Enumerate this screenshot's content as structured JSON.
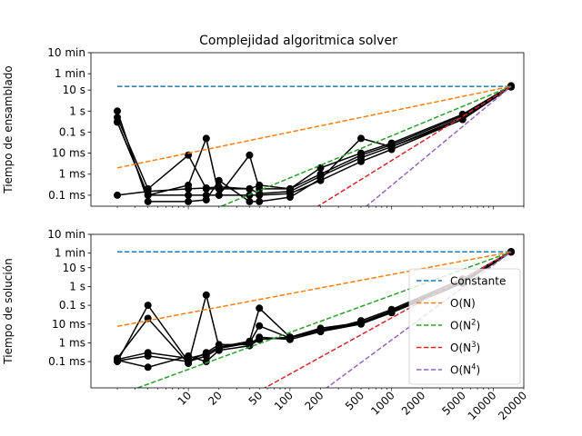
{
  "chart_data": [
    {
      "type": "line",
      "title": "Complejidad algoritmica solver",
      "xlabel": "",
      "ylabel": "Tiempo de ensamblado",
      "xscale": "log",
      "yscale": "log",
      "xlim": [
        1.1,
        20000
      ],
      "ylim": [
        3e-05,
        600
      ],
      "yticks": [
        {
          "value": 0.0001,
          "label": "0.1 ms"
        },
        {
          "value": 0.001,
          "label": "1 ms"
        },
        {
          "value": 0.01,
          "label": "10 ms"
        },
        {
          "value": 0.1,
          "label": "0.1 s"
        },
        {
          "value": 1,
          "label": "1 s"
        },
        {
          "value": 10,
          "label": "10 s"
        },
        {
          "value": 60,
          "label": "1 min"
        },
        {
          "value": 600,
          "label": "10 min"
        }
      ],
      "xticklabels_visible": false,
      "reference_lines": [
        {
          "name": "Constante",
          "color": "#1f77b4",
          "x": [
            2,
            15000
          ],
          "y": [
            15,
            15
          ]
        },
        {
          "name": "O(N)",
          "color": "#ff7f0e",
          "x": [
            2,
            15000
          ],
          "y": [
            0.002,
            15
          ]
        },
        {
          "name": "O(N2)",
          "color": "#2ca02c",
          "x": [
            10,
            15000
          ],
          "y": [
            6.7e-06,
            15
          ]
        },
        {
          "name": "O(N3)",
          "color": "#d62728",
          "x": [
            120,
            15000
          ],
          "y": [
            7.7e-06,
            15
          ]
        },
        {
          "name": "O(N4)",
          "color": "#9467bd",
          "x": [
            380,
            15000
          ],
          "y": [
            6.1e-06,
            15
          ]
        }
      ],
      "series_color": "#000000",
      "series": [
        {
          "x": [
            2,
            4,
            10,
            15,
            20,
            40,
            50,
            100,
            200,
            500,
            1000,
            5000,
            15000
          ],
          "y": [
            0.0001,
            0.00015,
            0.0002,
            0.00022,
            0.00025,
            0.0002,
            0.00012,
            0.00015,
            0.0008,
            0.006,
            0.02,
            0.5,
            15
          ]
        },
        {
          "x": [
            2,
            4,
            10,
            15,
            20,
            40,
            50,
            100,
            200,
            500,
            1000,
            5000,
            15000
          ],
          "y": [
            0.3,
            0.0001,
            0.0001,
            0.0001,
            0.0001,
            0.0001,
            0.0001,
            0.00012,
            0.0005,
            0.004,
            0.015,
            0.4,
            15
          ]
        },
        {
          "x": [
            2,
            4,
            10,
            15,
            20,
            40,
            50,
            100,
            200,
            500,
            1000,
            5000,
            15000
          ],
          "y": [
            0.5,
            0.0002,
            0.008,
            0.0002,
            0.0002,
            0.0002,
            0.0003,
            0.0002,
            0.001,
            0.008,
            0.025,
            0.6,
            15
          ]
        },
        {
          "x": [
            2,
            4,
            10,
            15,
            20,
            40,
            50,
            100,
            200,
            500,
            1000,
            5000,
            15000
          ],
          "y": [
            0.3,
            0.0001,
            0.0003,
            0.05,
            0.0001,
            0.008,
            0.0002,
            0.0002,
            0.002,
            0.01,
            0.03,
            0.7,
            16
          ]
        },
        {
          "x": [
            2,
            4,
            10,
            15,
            20,
            40,
            50,
            100,
            200,
            500,
            1000,
            5000,
            15000
          ],
          "y": [
            1.0,
            5e-05,
            5e-05,
            6e-05,
            0.0005,
            5e-05,
            5e-05,
            8e-05,
            0.0006,
            0.05,
            0.02,
            0.4,
            14
          ]
        }
      ]
    },
    {
      "type": "line",
      "xlabel": "",
      "ylabel": "Tiempo de solución",
      "xscale": "log",
      "yscale": "log",
      "xlim": [
        1.1,
        20000
      ],
      "ylim": [
        4e-06,
        600
      ],
      "yticks": [
        {
          "value": 0.0001,
          "label": "0.1 ms"
        },
        {
          "value": 0.001,
          "label": "1 ms"
        },
        {
          "value": 0.01,
          "label": "10 ms"
        },
        {
          "value": 0.1,
          "label": "0.1 s"
        },
        {
          "value": 1,
          "label": "1 s"
        },
        {
          "value": 10,
          "label": "10 s"
        },
        {
          "value": 60,
          "label": "1 min"
        },
        {
          "value": 600,
          "label": "10 min"
        }
      ],
      "xticks": [
        {
          "value": 10,
          "label": "10"
        },
        {
          "value": 20,
          "label": "20"
        },
        {
          "value": 50,
          "label": "50"
        },
        {
          "value": 100,
          "label": "100"
        },
        {
          "value": 200,
          "label": "200"
        },
        {
          "value": 500,
          "label": "500"
        },
        {
          "value": 1000,
          "label": "1000"
        },
        {
          "value": 2000,
          "label": "2000"
        },
        {
          "value": 5000,
          "label": "5000"
        },
        {
          "value": 10000,
          "label": "10000"
        },
        {
          "value": 20000,
          "label": "20000"
        }
      ],
      "legend_position": "lower-right",
      "legend": [
        "Constante",
        "O(N)",
        "O(N",
        "O(N",
        "O(N"
      ],
      "legend_superscripts": [
        "",
        "",
        "2",
        "3",
        "4"
      ],
      "reference_lines": [
        {
          "name": "Constante",
          "color": "#1f77b4",
          "x": [
            2,
            15000
          ],
          "y": [
            70,
            70
          ]
        },
        {
          "name": "O(N)",
          "color": "#ff7f0e",
          "x": [
            2,
            15000
          ],
          "y": [
            0.0075,
            70
          ]
        },
        {
          "name": "O(N2)",
          "color": "#2ca02c",
          "x": [
            2,
            15000
          ],
          "y": [
            1.6e-06,
            70
          ]
        },
        {
          "name": "O(N3)",
          "color": "#d62728",
          "x": [
            40,
            15000
          ],
          "y": [
            1.4e-06,
            70
          ]
        },
        {
          "name": "O(N4)",
          "color": "#9467bd",
          "x": [
            170,
            15000
          ],
          "y": [
            1.2e-06,
            70
          ]
        }
      ],
      "series_color": "#000000",
      "series": [
        {
          "x": [
            2,
            4,
            10,
            15,
            20,
            40,
            50,
            100,
            200,
            500,
            1000,
            5000,
            15000
          ],
          "y": [
            0.00013,
            0.0003,
            0.00015,
            0.00025,
            0.0006,
            0.001,
            0.0015,
            0.002,
            0.005,
            0.012,
            0.05,
            2,
            70
          ]
        },
        {
          "x": [
            2,
            4,
            10,
            15,
            20,
            40,
            50,
            100,
            200,
            500,
            1000,
            5000,
            15000
          ],
          "y": [
            0.0001,
            0.1,
            0.0001,
            0.0003,
            0.0008,
            0.0008,
            0.002,
            0.0015,
            0.004,
            0.01,
            0.04,
            1.5,
            68
          ]
        },
        {
          "x": [
            2,
            4,
            10,
            15,
            20,
            40,
            50,
            100,
            200,
            500,
            1000,
            5000,
            15000
          ],
          "y": [
            0.00015,
            0.02,
            8e-05,
            0.35,
            0.0006,
            0.0012,
            0.07,
            0.002,
            0.004,
            0.015,
            0.06,
            2.5,
            72
          ]
        },
        {
          "x": [
            2,
            4,
            10,
            15,
            20,
            40,
            50,
            100,
            200,
            500,
            1000,
            5000,
            15000
          ],
          "y": [
            0.00012,
            5e-05,
            0.0002,
            0.0001,
            0.0004,
            0.0007,
            0.0015,
            0.002,
            0.006,
            0.012,
            0.05,
            2,
            70
          ]
        },
        {
          "x": [
            2,
            4,
            10,
            15,
            20,
            40,
            50,
            100,
            200,
            500,
            1000,
            5000,
            15000
          ],
          "y": [
            0.00011,
            0.0002,
            0.0001,
            0.0002,
            0.0005,
            0.001,
            0.008,
            0.0018,
            0.005,
            0.011,
            0.045,
            1.8,
            71
          ]
        }
      ]
    }
  ]
}
